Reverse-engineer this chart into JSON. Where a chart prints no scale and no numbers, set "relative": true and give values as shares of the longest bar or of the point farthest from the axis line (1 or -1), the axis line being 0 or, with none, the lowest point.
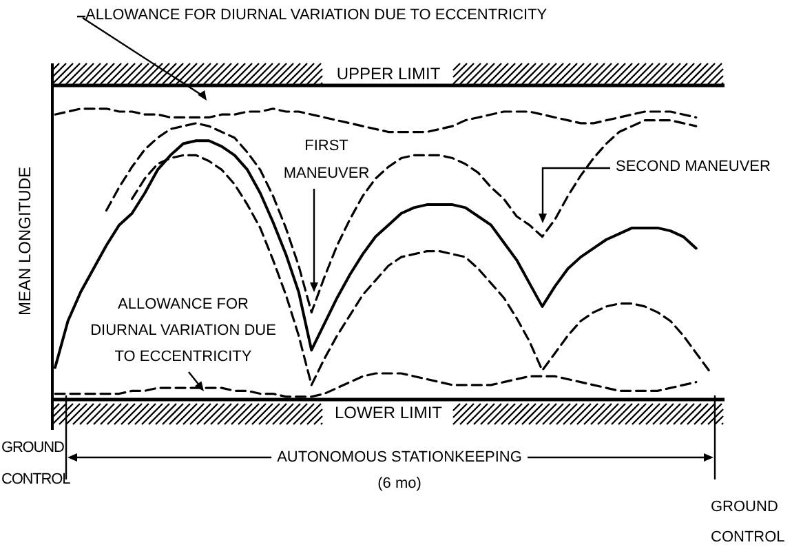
{
  "chart_data": {
    "type": "line",
    "relative": true,
    "ylabel": "MEAN LONGITUDE",
    "marker": "none",
    "categories": [
      null,
      null,
      null,
      null,
      null,
      null,
      null,
      null,
      null,
      null,
      null,
      null,
      null,
      null,
      null,
      null,
      null,
      null,
      null,
      null,
      null,
      null,
      null,
      null,
      null,
      null,
      null,
      null,
      null,
      null,
      null,
      null,
      null,
      null,
      null,
      null,
      null,
      null,
      null,
      null,
      null,
      null,
      null,
      null,
      null,
      null,
      null,
      null,
      null,
      null,
      null,
      null,
      null
    ],
    "series": [
      {
        "color": "#000000",
        "line_style": "dashed",
        "values": [
          0.98,
          0.99,
          1.0,
          1.0,
          1.0,
          0.99,
          0.99,
          0.98,
          0.98,
          0.97,
          0.97,
          0.97,
          0.97,
          0.98,
          0.98,
          0.99,
          0.99,
          1.0,
          0.99,
          0.99,
          0.98,
          0.97,
          0.96,
          0.95,
          0.94,
          0.93,
          0.92,
          0.92,
          0.92,
          0.92,
          0.93,
          0.94,
          0.96,
          0.97,
          0.98,
          0.99,
          0.99,
          0.99,
          0.98,
          0.97,
          0.96,
          0.95,
          0.95,
          0.96,
          0.97,
          0.98,
          0.99,
          0.99,
          0.99,
          0.98,
          0.97,
          null,
          null
        ]
      },
      {
        "color": "#000000",
        "line_style": "dashed",
        "values": [
          null,
          null,
          null,
          null,
          0.65,
          0.73,
          0.8,
          0.86,
          0.9,
          0.93,
          0.94,
          0.95,
          0.94,
          0.92,
          0.9,
          0.85,
          0.79,
          0.7,
          0.59,
          0.46,
          0.3,
          0.42,
          0.53,
          0.62,
          0.7,
          0.76,
          0.8,
          0.83,
          0.84,
          0.84,
          0.84,
          0.83,
          0.81,
          0.78,
          0.73,
          0.69,
          0.63,
          0.6,
          0.56,
          0.62,
          0.7,
          0.77,
          0.83,
          0.88,
          0.92,
          0.94,
          0.96,
          0.96,
          0.96,
          0.95,
          0.94,
          null,
          null
        ]
      },
      {
        "color": "#000000",
        "line_style": "solid",
        "values": [
          0.11,
          0.27,
          0.37,
          0.45,
          0.53,
          0.6,
          0.64,
          0.71,
          0.79,
          0.84,
          0.88,
          0.89,
          0.89,
          0.87,
          0.84,
          0.79,
          0.71,
          0.61,
          0.5,
          0.37,
          0.17,
          0.26,
          0.35,
          0.43,
          0.5,
          0.56,
          0.6,
          0.64,
          0.66,
          0.67,
          0.67,
          0.67,
          0.66,
          0.63,
          0.6,
          0.54,
          0.48,
          0.4,
          0.32,
          0.39,
          0.45,
          0.49,
          0.52,
          0.55,
          0.57,
          0.59,
          0.59,
          0.59,
          0.58,
          0.56,
          0.52,
          null,
          null
        ]
      },
      {
        "color": "#000000",
        "line_style": "dashed",
        "values": [
          null,
          null,
          null,
          null,
          null,
          null,
          0.69,
          0.76,
          0.81,
          0.83,
          0.84,
          0.84,
          0.82,
          0.79,
          0.74,
          0.67,
          0.59,
          0.48,
          0.36,
          0.22,
          0.05,
          0.14,
          0.22,
          0.29,
          0.36,
          0.41,
          0.46,
          0.49,
          0.5,
          0.51,
          0.51,
          0.5,
          0.49,
          0.45,
          0.4,
          0.35,
          0.28,
          0.2,
          0.1,
          0.16,
          0.22,
          0.27,
          0.3,
          0.32,
          0.33,
          0.33,
          0.32,
          0.3,
          0.27,
          0.22,
          0.16,
          0.1,
          null
        ]
      },
      {
        "color": "#000000",
        "line_style": "dashed",
        "values": [
          0.02,
          0.02,
          0.02,
          0.02,
          0.02,
          0.02,
          0.03,
          0.03,
          0.04,
          0.04,
          0.04,
          0.04,
          0.04,
          0.04,
          0.03,
          0.03,
          0.02,
          0.02,
          0.01,
          0.01,
          0.01,
          0.02,
          0.04,
          0.06,
          0.08,
          0.09,
          0.09,
          0.09,
          0.08,
          0.07,
          0.06,
          0.05,
          0.05,
          0.05,
          0.05,
          0.06,
          0.07,
          0.08,
          0.08,
          0.08,
          0.07,
          0.06,
          0.05,
          0.04,
          0.03,
          0.03,
          0.03,
          0.03,
          0.04,
          0.05,
          0.06,
          null,
          null
        ]
      }
    ],
    "ref_lines": [
      {
        "axis": "y",
        "value": 1.08,
        "label": "UPPER LIMIT",
        "color": "#000000"
      },
      {
        "axis": "y",
        "value": 0,
        "label": "LOWER LIMIT",
        "color": "#000000"
      }
    ],
    "annotations": [
      "ALLOWANCE FOR DIURNAL VARIATION DUE TO ECCENTRICITY",
      "FIRST MANEUVER",
      "SECOND MANEUVER",
      "ALLOWANCE FOR DIURNAL VARIATION DUE TO ECCENTRICITY",
      "GROUND CONTROL",
      "AUTONOMOUS STATIONKEEPING",
      "(6 mo)",
      "GROUND CONTROL"
    ]
  }
}
